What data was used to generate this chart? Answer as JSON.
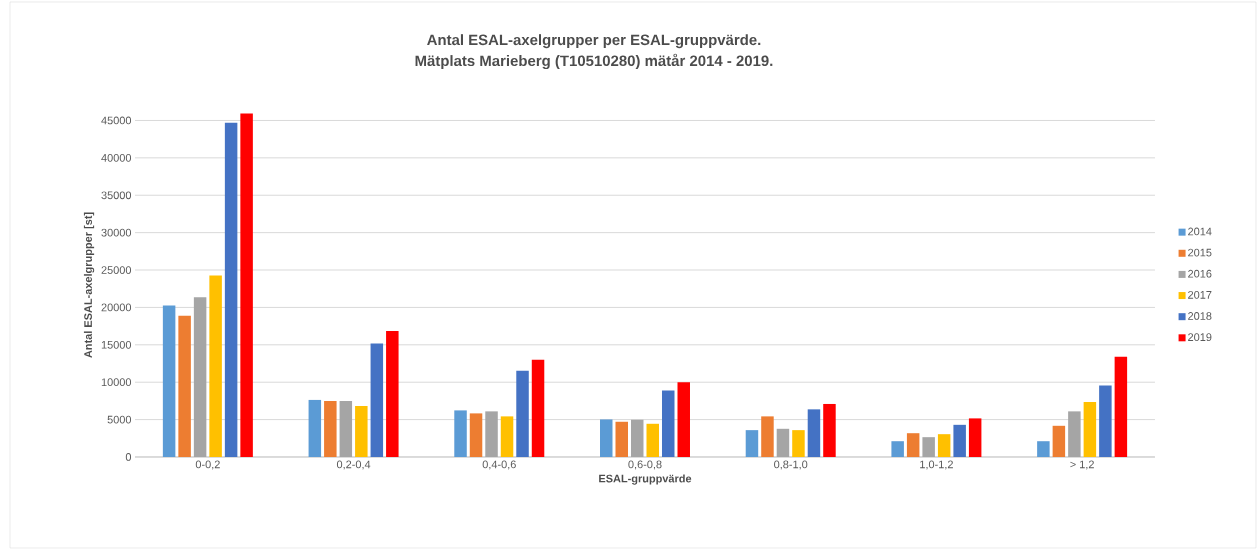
{
  "chart_data": {
    "type": "bar",
    "title": "Antal ESAL-axelgrupper per ESAL-gruppvärde.\nMätplats Marieberg (T10510280) mätår 2014 - 2019.",
    "xlabel": "ESAL-gruppvärde",
    "ylabel": "Antal ESAL-axelgrupper [st]",
    "categories": [
      "0-0,2",
      "0,2-0,4",
      "0,4-0,6",
      "0,6-0,8",
      "0,8-1,0",
      "1,0-1,2",
      "> 1,2"
    ],
    "series": [
      {
        "name": "2014",
        "color": "#5b9bd5",
        "values": [
          20250,
          7630,
          6230,
          5020,
          3590,
          2110,
          2110
        ]
      },
      {
        "name": "2015",
        "color": "#ed7d31",
        "values": [
          18870,
          7490,
          5830,
          4710,
          5430,
          3180,
          4170
        ]
      },
      {
        "name": "2016",
        "color": "#a5a5a5",
        "values": [
          21370,
          7490,
          6100,
          4980,
          3770,
          2650,
          6100
        ]
      },
      {
        "name": "2017",
        "color": "#ffc000",
        "values": [
          24270,
          6820,
          5430,
          4440,
          3590,
          3050,
          7350
        ]
      },
      {
        "name": "2018",
        "color": "#4472c4",
        "values": [
          44690,
          15170,
          11520,
          8880,
          6370,
          4300,
          9550
        ]
      },
      {
        "name": "2019",
        "color": "#ff0000",
        "values": [
          45940,
          16860,
          13000,
          10000,
          7090,
          5160,
          13400
        ]
      }
    ],
    "ylim": [
      0,
      46000
    ],
    "yticks": [
      0,
      5000,
      10000,
      15000,
      20000,
      25000,
      30000,
      35000,
      40000,
      45000
    ],
    "grid": "y",
    "legend": "right"
  }
}
